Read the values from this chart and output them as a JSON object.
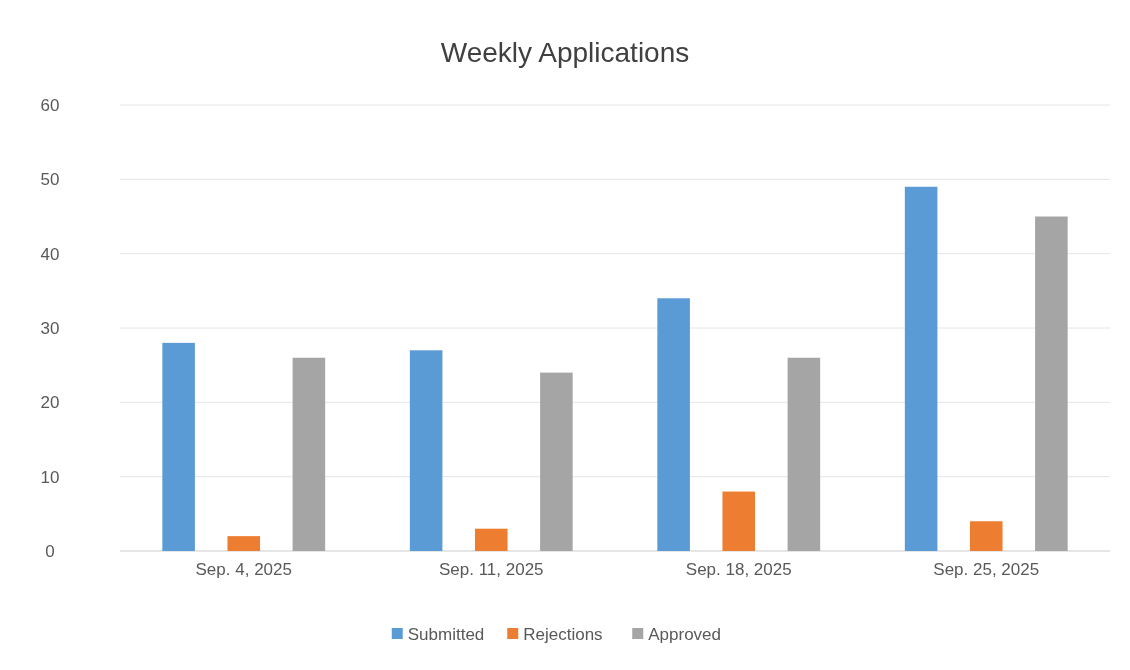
{
  "chart_data": {
    "type": "bar",
    "title": "Weekly Applications",
    "categories": [
      "Sep. 4, 2025",
      "Sep. 11, 2025",
      "Sep. 18, 2025",
      "Sep. 25, 2025"
    ],
    "series": [
      {
        "name": "Submitted",
        "color": "#5b9bd5",
        "values": [
          28,
          27,
          34,
          49
        ]
      },
      {
        "name": "Rejections",
        "color": "#ed7d31",
        "values": [
          2,
          3,
          8,
          4
        ]
      },
      {
        "name": "Approved",
        "color": "#a5a5a5",
        "values": [
          26,
          24,
          26,
          45
        ]
      }
    ],
    "ylim": [
      0,
      60
    ],
    "yticks": [
      0,
      10,
      20,
      30,
      40,
      50,
      60
    ],
    "grid": "y",
    "legend": "bottom"
  }
}
